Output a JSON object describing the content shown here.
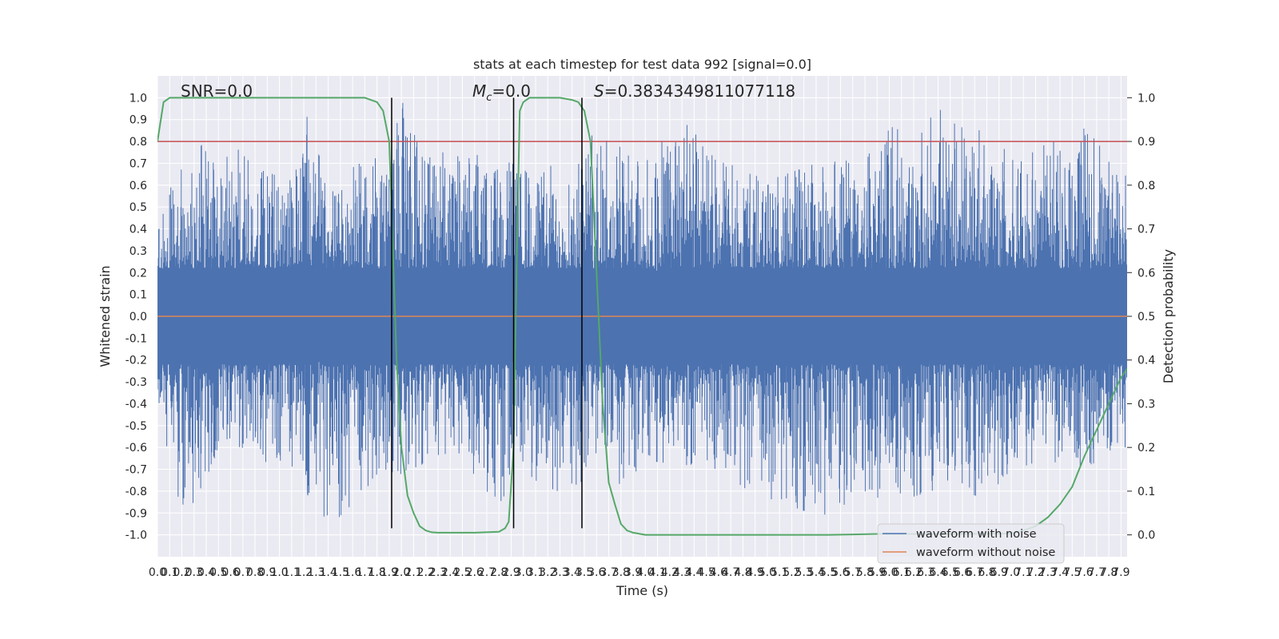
{
  "chart_data": {
    "type": "line",
    "title": "stats at each timestep for test data 992 [signal=0.0]",
    "xlabel": "Time (s)",
    "ylabel": "Whitened strain",
    "y2label": "Detection probability",
    "xlim": [
      0.0,
      7.95
    ],
    "ylim": [
      -1.1,
      1.1
    ],
    "y2lim": [
      -0.05,
      1.05
    ],
    "x_ticks": [
      0.0,
      0.1,
      0.2,
      0.3,
      0.4,
      0.5,
      0.6,
      0.7,
      0.8,
      0.9,
      1.0,
      1.1,
      1.2,
      1.3,
      1.4,
      1.5,
      1.6,
      1.7,
      1.8,
      1.9,
      2.0,
      2.1,
      2.2,
      2.3,
      2.4,
      2.5,
      2.6,
      2.7,
      2.8,
      2.9,
      3.0,
      3.1,
      3.2,
      3.3,
      3.4,
      3.5,
      3.6,
      3.7,
      3.8,
      3.9,
      4.0,
      4.1,
      4.2,
      4.3,
      4.4,
      4.5,
      4.6,
      4.7,
      4.8,
      4.9,
      5.0,
      5.1,
      5.2,
      5.3,
      5.4,
      5.5,
      5.6,
      5.7,
      5.8,
      5.9,
      6.0,
      6.1,
      6.2,
      6.3,
      6.4,
      6.5,
      6.6,
      6.7,
      6.8,
      6.9,
      7.0,
      7.1,
      7.2,
      7.3,
      7.4,
      7.5,
      7.6,
      7.7,
      7.8,
      7.9
    ],
    "y_ticks": [
      "1.0",
      "0.9",
      "0.8",
      "0.7",
      "0.6",
      "0.5",
      "0.4",
      "0.3",
      "0.2",
      "0.1",
      "0.0",
      "-0.1",
      "-0.2",
      "-0.3",
      "-0.4",
      "-0.5",
      "-0.6",
      "-0.7",
      "-0.8",
      "-0.9",
      "-1.0"
    ],
    "y2_ticks": [
      "1.0",
      "0.9",
      "0.8",
      "0.7",
      "0.6",
      "0.5",
      "0.4",
      "0.3",
      "0.2",
      "0.1",
      "0.0"
    ],
    "grid": true,
    "legend_position": "lower-right",
    "annotations": {
      "snr": "SNR=0.0",
      "mc_symbol": "M",
      "mc_sub": "c",
      "mc_value": "=0.0",
      "s_symbol": "S",
      "s_value": "=0.3834349811077118"
    },
    "noise": {
      "name": "waveform with noise",
      "color": "#4c72b0",
      "core_amplitude": 0.22,
      "spike_upper_envelope": [
        [
          0.0,
          0.38
        ],
        [
          0.1,
          0.6
        ],
        [
          0.3,
          0.75
        ],
        [
          0.5,
          0.86
        ],
        [
          0.8,
          0.68
        ],
        [
          1.1,
          0.62
        ],
        [
          1.2,
          0.96
        ],
        [
          1.4,
          0.6
        ],
        [
          1.7,
          0.72
        ],
        [
          1.9,
          0.75
        ],
        [
          2.0,
          0.99
        ],
        [
          2.2,
          0.75
        ],
        [
          2.5,
          0.75
        ],
        [
          2.8,
          0.72
        ],
        [
          3.0,
          0.68
        ],
        [
          3.4,
          0.72
        ],
        [
          3.5,
          0.84
        ],
        [
          3.7,
          0.8
        ],
        [
          4.0,
          0.72
        ],
        [
          4.3,
          0.9
        ],
        [
          4.6,
          0.72
        ],
        [
          5.0,
          0.62
        ],
        [
          5.4,
          0.7
        ],
        [
          5.8,
          0.72
        ],
        [
          6.0,
          0.86
        ],
        [
          6.4,
          0.95
        ],
        [
          6.7,
          0.86
        ],
        [
          6.8,
          0.94
        ],
        [
          7.0,
          0.72
        ],
        [
          7.6,
          0.86
        ],
        [
          7.95,
          0.68
        ]
      ],
      "spike_lower_envelope": [
        [
          0.0,
          -0.42
        ],
        [
          0.2,
          -0.9
        ],
        [
          0.3,
          -0.85
        ],
        [
          0.5,
          -0.62
        ],
        [
          1.0,
          -0.68
        ],
        [
          1.2,
          -0.79
        ],
        [
          1.4,
          -0.97
        ],
        [
          1.7,
          -0.8
        ],
        [
          2.0,
          -0.72
        ],
        [
          2.4,
          -0.62
        ],
        [
          2.8,
          -0.86
        ],
        [
          3.0,
          -0.68
        ],
        [
          3.2,
          -0.84
        ],
        [
          3.6,
          -0.72
        ],
        [
          3.8,
          -0.82
        ],
        [
          4.0,
          -0.66
        ],
        [
          4.6,
          -0.7
        ],
        [
          5.0,
          -0.86
        ],
        [
          5.5,
          -0.91
        ],
        [
          5.8,
          -0.8
        ],
        [
          6.0,
          -0.86
        ],
        [
          6.4,
          -0.79
        ],
        [
          6.8,
          -0.83
        ],
        [
          7.0,
          -0.7
        ],
        [
          7.4,
          -0.7
        ],
        [
          7.95,
          -0.65
        ]
      ]
    },
    "clean": {
      "name": "waveform without noise",
      "color": "#dd8452",
      "value": 0.0
    },
    "threshold": {
      "value": 0.9,
      "color": "#c44e52"
    },
    "detection_probability": {
      "color": "#55a868",
      "x": [
        0.0,
        0.05,
        0.1,
        0.2,
        0.5,
        1.0,
        1.5,
        1.7,
        1.8,
        1.85,
        1.9,
        1.93,
        1.96,
        2.0,
        2.05,
        2.1,
        2.15,
        2.2,
        2.25,
        2.3,
        2.4,
        2.6,
        2.8,
        2.85,
        2.88,
        2.92,
        2.95,
        2.97,
        3.0,
        3.05,
        3.1,
        3.2,
        3.3,
        3.4,
        3.45,
        3.5,
        3.55,
        3.6,
        3.65,
        3.7,
        3.75,
        3.8,
        3.85,
        3.9,
        4.0,
        4.5,
        5.0,
        5.5,
        5.7,
        5.9,
        6.2,
        6.6,
        7.0,
        7.1,
        7.2,
        7.3,
        7.4,
        7.5,
        7.6,
        7.7,
        7.8,
        7.9,
        7.95
      ],
      "y": [
        0.9,
        0.99,
        1.0,
        1.0,
        1.0,
        1.0,
        1.0,
        1.0,
        0.99,
        0.97,
        0.9,
        0.65,
        0.4,
        0.2,
        0.09,
        0.05,
        0.02,
        0.01,
        0.006,
        0.005,
        0.005,
        0.005,
        0.007,
        0.015,
        0.03,
        0.2,
        0.7,
        0.97,
        0.99,
        1.0,
        1.0,
        1.0,
        1.0,
        0.995,
        0.99,
        0.97,
        0.9,
        0.6,
        0.3,
        0.12,
        0.07,
        0.025,
        0.01,
        0.005,
        0.0,
        0.0,
        0.0,
        0.0,
        0.001,
        0.002,
        0.002,
        0.002,
        0.003,
        0.01,
        0.02,
        0.04,
        0.07,
        0.11,
        0.18,
        0.24,
        0.3,
        0.36,
        0.38
      ]
    },
    "vertical_lines": {
      "color": "#000000",
      "x": [
        1.92,
        2.92,
        3.48
      ],
      "y_range": [
        -0.97,
        1.0
      ]
    }
  }
}
